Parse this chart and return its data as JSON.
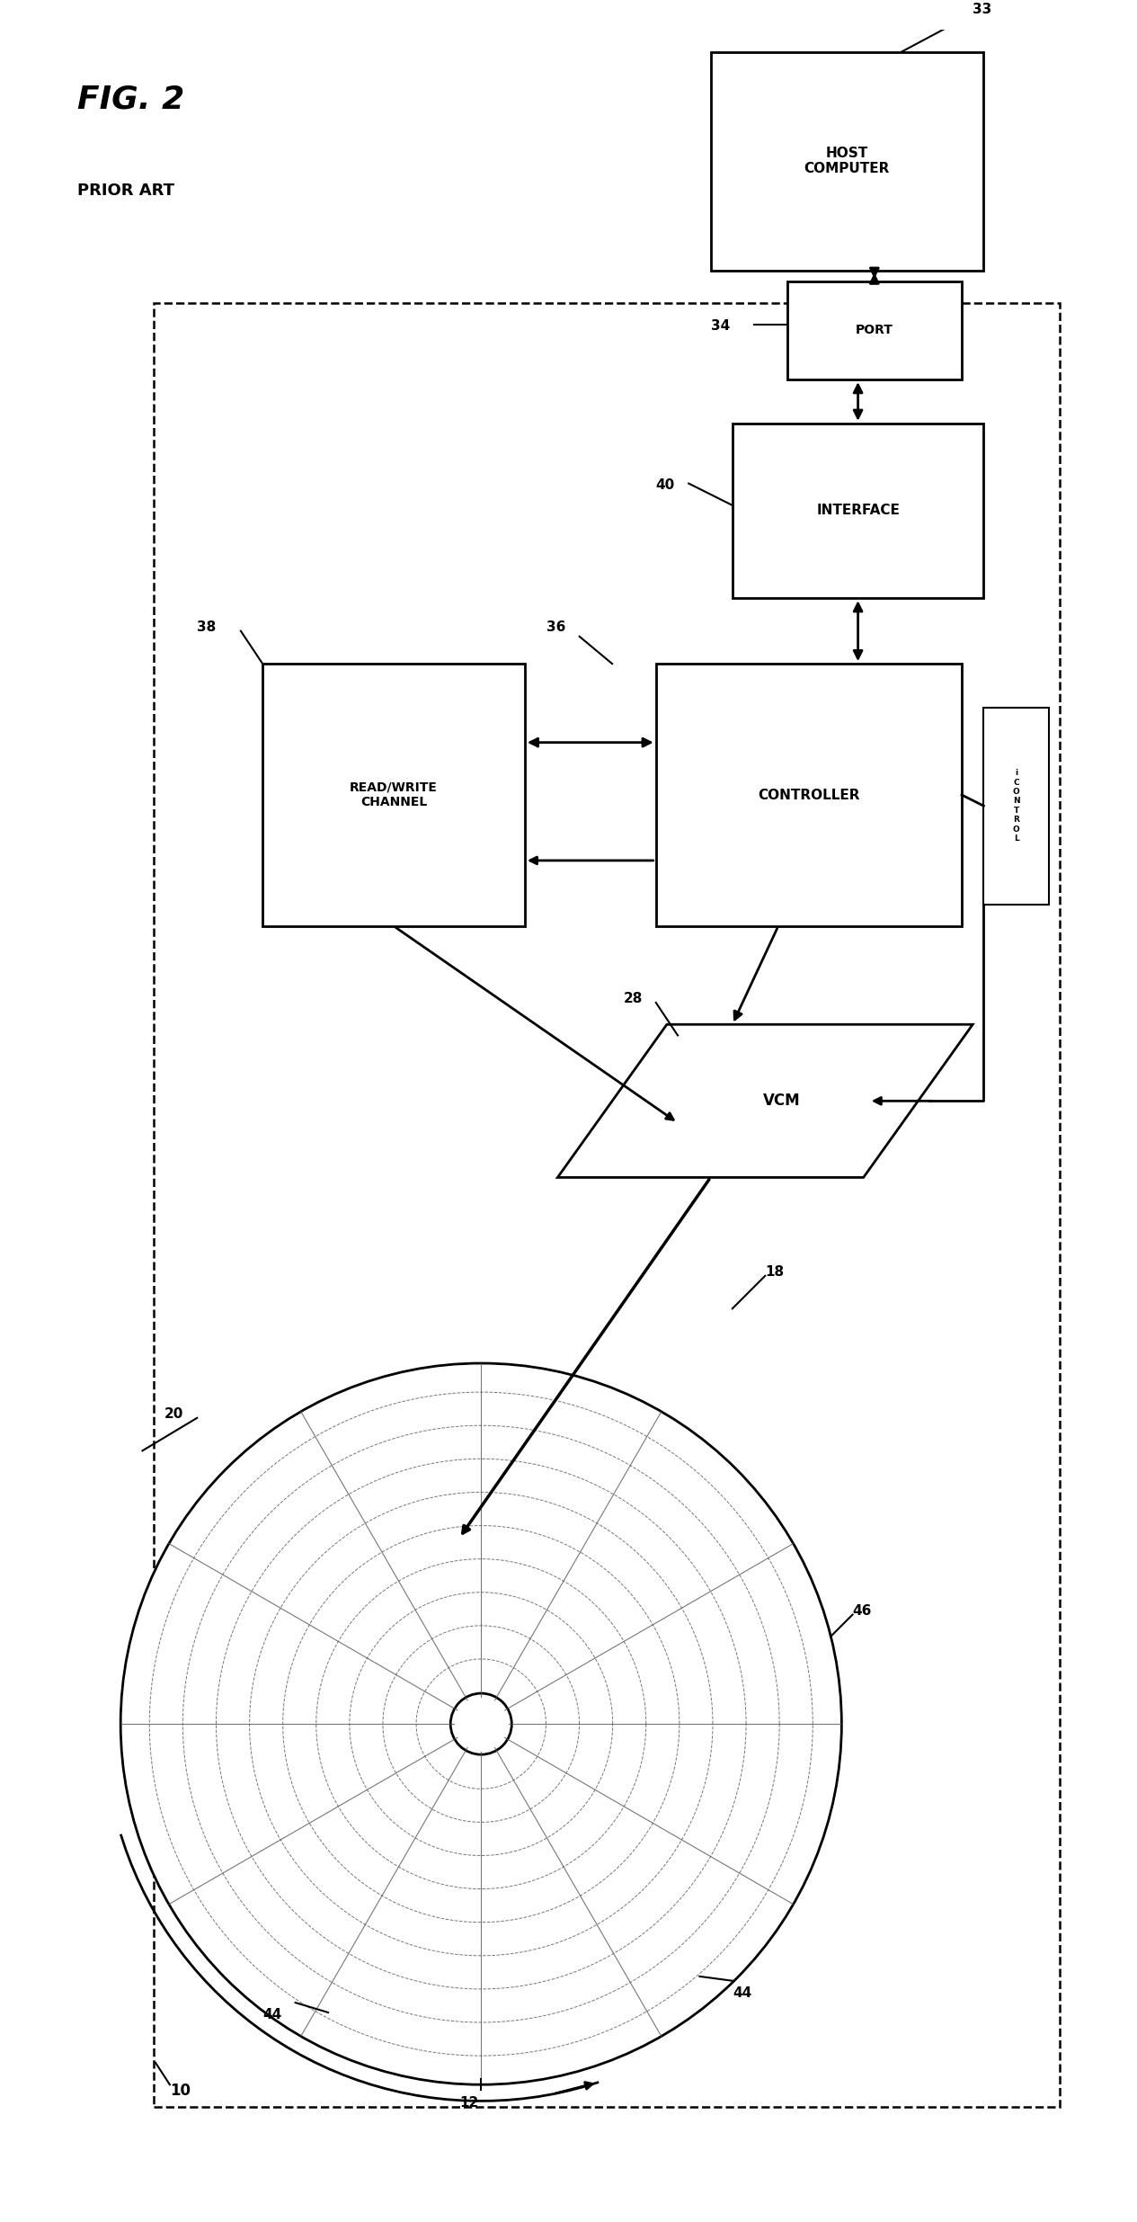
{
  "title": "FIG. 2",
  "subtitle": "PRIOR ART",
  "bg_color": "#ffffff",
  "line_color": "#000000",
  "labels": {
    "host_computer": "HOST\nCOMPUTER",
    "port": "PORT",
    "interface": "INTERFACE",
    "controller": "CONTROLLER",
    "readwrite": "READ/WRITE\nCHANNEL",
    "vcm": "VCM",
    "icontrol": "iCONTROL"
  },
  "refs": {
    "n10": "10",
    "n12": "12",
    "n18": "18",
    "n20": "20",
    "n28": "28",
    "n33": "33",
    "n34": "34",
    "n36": "36",
    "n38": "38",
    "n40": "40",
    "n44a": "44",
    "n44b": "44",
    "n46": "46"
  }
}
